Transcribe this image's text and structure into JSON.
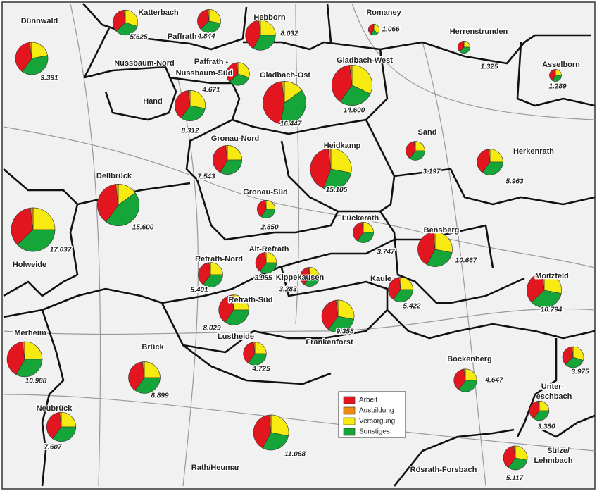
{
  "legend": {
    "items": [
      {
        "name": "Arbeit",
        "color": "#e3161f"
      },
      {
        "name": "Ausbildung",
        "color": "#f28a12"
      },
      {
        "name": "Versorgung",
        "color": "#f7ea10"
      },
      {
        "name": "Sonstiges",
        "color": "#16a539"
      }
    ]
  },
  "districts": [
    {
      "name": "Katterbach",
      "value": 5625,
      "value_label": "5.625",
      "shares": [
        35,
        2,
        30,
        33
      ]
    },
    {
      "name": [
        "Paffrath -",
        "Nussbaum-Nord"
      ],
      "value": 4844,
      "value_label": "4.844",
      "shares": [
        35,
        2,
        28,
        35
      ]
    },
    {
      "name": "Hebborn",
      "value": 8032,
      "value_label": "8.032",
      "shares": [
        40,
        2,
        25,
        33
      ]
    },
    {
      "name": "Romaney",
      "value": 1066,
      "value_label": "1.066",
      "shares": [
        40,
        2,
        38,
        20
      ]
    },
    {
      "name": "Herrenstrunden",
      "value": 1325,
      "value_label": "1.325",
      "shares": [
        35,
        2,
        25,
        38
      ]
    },
    {
      "name": "Dünnwald",
      "value": 9391,
      "value_label": "9.391",
      "shares": [
        38,
        2,
        22,
        38
      ]
    },
    {
      "name": [
        "Paffrath -",
        "Nussbaum-Süd"
      ],
      "value": 4671,
      "value_label": "4.671",
      "shares": [
        35,
        2,
        30,
        33
      ]
    },
    {
      "name": "Gladbach-Ost",
      "value": 16447,
      "value_label": "16.447",
      "shares": [
        45,
        2,
        15,
        38
      ]
    },
    {
      "name": "Gladbach-West",
      "value": 14600,
      "value_label": "14.600",
      "shares": [
        38,
        2,
        32,
        28
      ]
    },
    {
      "name": "Asselborn",
      "value": 1289,
      "value_label": "1.289",
      "shares": [
        40,
        2,
        25,
        33
      ]
    },
    {
      "name": "Hand",
      "value": 8312,
      "value_label": "8.312",
      "shares": [
        38,
        2,
        28,
        32
      ]
    },
    {
      "name": "Sand",
      "value": 3197,
      "value_label": "3.197",
      "shares": [
        38,
        2,
        25,
        35
      ]
    },
    {
      "name": "Gronau-Nord",
      "value": 7543,
      "value_label": "7.543",
      "shares": [
        40,
        2,
        25,
        33
      ]
    },
    {
      "name": "Heidkamp",
      "value": 15105,
      "value_label": "15.105",
      "shares": [
        42,
        2,
        28,
        28
      ]
    },
    {
      "name": "Herkenrath",
      "value": 5963,
      "value_label": "5.963",
      "shares": [
        38,
        2,
        25,
        35
      ]
    },
    {
      "name": "Dellbrück",
      "value": 15600,
      "value_label": "15.600",
      "shares": [
        38,
        2,
        15,
        45
      ]
    },
    {
      "name": "Holweide",
      "value": 17037,
      "value_label": "17.037",
      "shares": [
        35,
        2,
        25,
        38
      ]
    },
    {
      "name": "Gronau-Süd",
      "value": 2850,
      "value_label": "2.850",
      "shares": [
        38,
        2,
        25,
        35
      ]
    },
    {
      "name": "Lückerath",
      "value": 3747,
      "value_label": "3.747",
      "shares": [
        38,
        2,
        25,
        35
      ]
    },
    {
      "name": "Bensberg",
      "value": 10667,
      "value_label": "10.667",
      "shares": [
        40,
        2,
        28,
        30
      ]
    },
    {
      "name": "Alt-Refrath",
      "value": 3955,
      "value_label": "3.955",
      "shares": [
        38,
        2,
        25,
        35
      ]
    },
    {
      "name": "Refrath-Nord",
      "value": 5401,
      "value_label": "5.401",
      "shares": [
        38,
        2,
        25,
        35
      ]
    },
    {
      "name": "Kippekausen",
      "value": 3283,
      "value_label": "3.283",
      "shares": [
        38,
        2,
        25,
        35
      ]
    },
    {
      "name": "Kaule",
      "value": 5422,
      "value_label": "5.422",
      "shares": [
        38,
        2,
        25,
        35
      ]
    },
    {
      "name": "Moitzfeld",
      "value": 10794,
      "value_label": "10.794",
      "shares": [
        35,
        2,
        28,
        35
      ]
    },
    {
      "name": "Refrath-Süd",
      "value": 8029,
      "value_label": "8.029",
      "shares": [
        38,
        2,
        25,
        35
      ]
    },
    {
      "name": "Frankenforst",
      "value": 9358,
      "value_label": "9.358",
      "shares": [
        38,
        2,
        28,
        32
      ]
    },
    {
      "name": "Merheim",
      "value": 10988,
      "value_label": "10.988",
      "shares": [
        40,
        2,
        25,
        33
      ]
    },
    {
      "name": "Brück",
      "value": 8899,
      "value_label": "8.899",
      "shares": [
        38,
        2,
        25,
        35
      ]
    },
    {
      "name": "Lustheide",
      "value": 4725,
      "value_label": "4.725",
      "shares": [
        38,
        2,
        25,
        35
      ]
    },
    {
      "name": "Bockenberg",
      "value": 4647,
      "value_label": "4.647",
      "shares": [
        38,
        2,
        25,
        35
      ]
    },
    {
      "name": [
        "Unter-",
        "eschbach"
      ],
      "value": 3975,
      "value_label": "3.975",
      "shares": [
        35,
        2,
        30,
        33
      ]
    },
    {
      "name": "Neubrück",
      "value": 7607,
      "value_label": "7.607",
      "shares": [
        38,
        2,
        25,
        35
      ]
    },
    {
      "name": [
        "Sülze/",
        "Lehmbach"
      ],
      "value": 3380,
      "value_label": "3.380",
      "shares": [
        38,
        2,
        25,
        35
      ]
    },
    {
      "name": "Rath/Heumar",
      "value": 11068,
      "value_label": "11.068",
      "shares": [
        40,
        2,
        28,
        30
      ]
    },
    {
      "name": "Rösrath-Forsbach",
      "value": 5117,
      "value_label": "5.117",
      "shares": [
        38,
        2,
        28,
        32
      ]
    }
  ]
}
